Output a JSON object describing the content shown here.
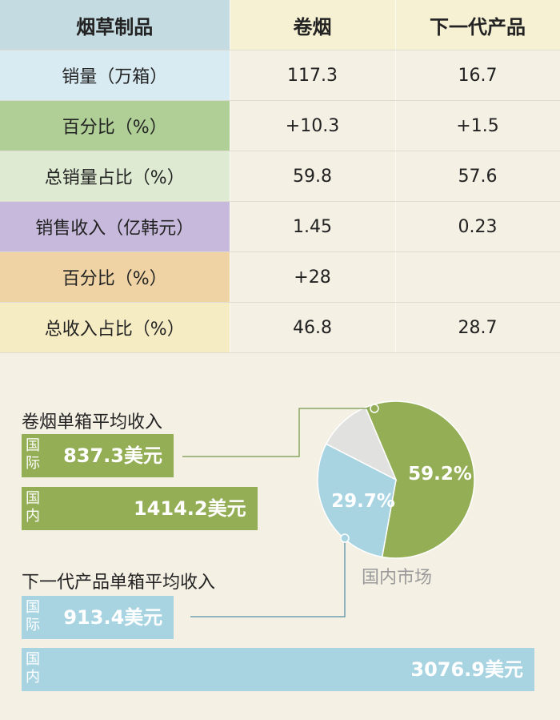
{
  "table": {
    "header": [
      "烟草制品",
      "卷烟",
      "下一代产品"
    ],
    "header_colors": [
      "#c4dbe1",
      "#f7f1d4",
      "#f7f1d4"
    ],
    "rows": [
      {
        "label": "销量（万箱）",
        "color": "#d8ebf2",
        "cigarette": "117.3",
        "ngp": "16.7"
      },
      {
        "label": "百分比（%）",
        "color": "#afcf96",
        "cigarette": "+10.3",
        "ngp": "+1.5"
      },
      {
        "label": "总销量占比（%）",
        "color": "#deebd2",
        "cigarette": "59.8",
        "ngp": "57.6"
      },
      {
        "label": "销售收入（亿韩元）",
        "color": "#c7b9dc",
        "cigarette": "1.45",
        "ngp": "0.23"
      },
      {
        "label": "百分比（%）",
        "color": "#efd3a4",
        "cigarette": "+28",
        "ngp": ""
      },
      {
        "label": "总收入占比（%）",
        "color": "#f6ecc3",
        "cigarette": "46.8",
        "ngp": "28.7"
      }
    ]
  },
  "chart_data": [
    {
      "type": "bar",
      "title": "卷烟单箱平均收入",
      "categories": [
        "国际",
        "国内"
      ],
      "values": [
        837.3,
        1414.2
      ],
      "unit": "美元",
      "labels": [
        "837.3美元",
        "1414.2美元"
      ],
      "color": "#94ae56"
    },
    {
      "type": "bar",
      "title": "下一代产品单箱平均收入",
      "categories": [
        "国际",
        "国内"
      ],
      "values": [
        913.4,
        3076.9
      ],
      "unit": "美元",
      "labels": [
        "913.4美元",
        "3076.9美元"
      ],
      "color": "#a8d4e2"
    },
    {
      "type": "pie",
      "title": "国内市场",
      "slices": [
        {
          "value": 59.2,
          "label": "59.2%",
          "color": "#94ae56"
        },
        {
          "value": 29.7,
          "label": "29.7%",
          "color": "#a8d4e2"
        },
        {
          "value": 11.1,
          "label": "",
          "color": "#e1e1df"
        }
      ]
    }
  ],
  "colors": {
    "connector": "#8aa663",
    "connector_blue": "#6f9fb0"
  }
}
